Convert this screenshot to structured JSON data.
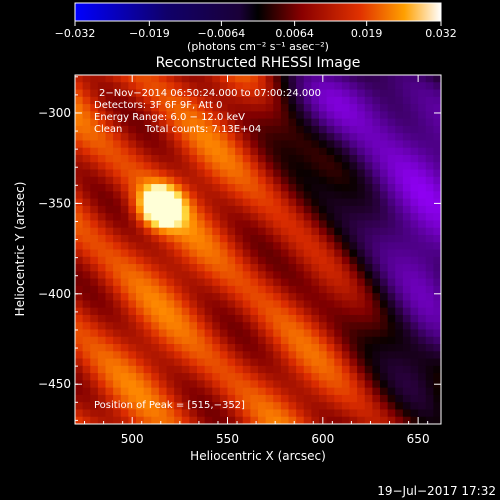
{
  "chart_data": {
    "type": "heatmap",
    "title": "Reconstructed RHESSI Image",
    "xlabel": "Heliocentric X (arcsec)",
    "ylabel": "Heliocentric Y (arcsec)",
    "xlim": [
      470,
      662
    ],
    "ylim": [
      -472,
      -279
    ],
    "x_ticks": [
      500,
      550,
      600,
      650
    ],
    "y_ticks": [
      -300,
      -350,
      -400,
      -450
    ],
    "x_tick_labels": [
      "500",
      "550",
      "600",
      "650"
    ],
    "y_tick_labels": [
      "−300",
      "−350",
      "−400",
      "−450"
    ],
    "colorbar": {
      "range": [
        -0.032,
        0.032
      ],
      "ticks": [
        -0.032,
        -0.019,
        -0.0064,
        0.0064,
        0.019,
        0.032
      ],
      "tick_labels": [
        "−0.032",
        "−0.019",
        "−0.0064",
        "0.0064",
        "0.019",
        "0.032"
      ],
      "units": "(photons cm⁻² s⁻¹ asec⁻²)"
    },
    "annotations": {
      "time_range": "2−Nov−2014 06:50:24.000 to 07:00:24.000",
      "detectors": "Detectors: 3F 6F 9F, Att 0",
      "energy": "Energy Range: 6.0 − 12.0 keV",
      "method": "Clean",
      "total_counts": "Total counts: 7.13E+04",
      "peak": "Position of Peak = [515,−352]"
    },
    "peak": {
      "x": 515,
      "y": -352
    },
    "grid": false,
    "timestamp": "19−Jul−2017 17:32"
  }
}
